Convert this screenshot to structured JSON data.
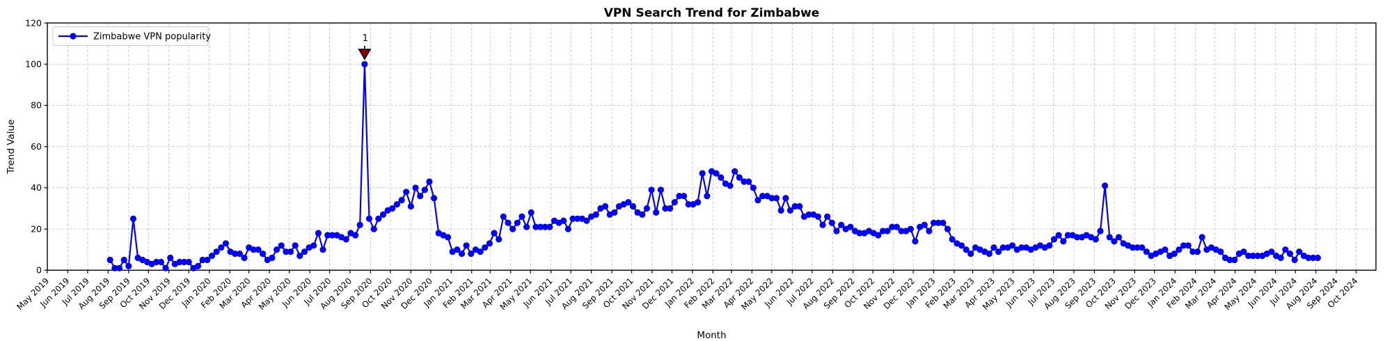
{
  "chart_data": {
    "type": "line",
    "title": "VPN Search Trend for Zimbabwe",
    "xlabel": "Month",
    "ylabel": "Trend Value",
    "ylim": [
      0,
      120
    ],
    "y_ticks": [
      0,
      20,
      40,
      60,
      80,
      100,
      120
    ],
    "grid": true,
    "legend_position": "upper-left",
    "axis_start": "2019-05-01",
    "axis_end": "2024-10-31",
    "x_tick_labels": [
      "May 2019",
      "Jun 2019",
      "Jul 2019",
      "Aug 2019",
      "Sep 2019",
      "Oct 2019",
      "Nov 2019",
      "Dec 2019",
      "Jan 2020",
      "Feb 2020",
      "Mar 2020",
      "Apr 2020",
      "May 2020",
      "Jun 2020",
      "Jul 2020",
      "Aug 2020",
      "Sep 2020",
      "Oct 2020",
      "Nov 2020",
      "Dec 2020",
      "Jan 2021",
      "Feb 2021",
      "Mar 2021",
      "Apr 2021",
      "May 2021",
      "Jun 2021",
      "Jul 2021",
      "Aug 2021",
      "Sep 2021",
      "Oct 2021",
      "Nov 2021",
      "Dec 2021",
      "Jan 2022",
      "Feb 2022",
      "Mar 2022",
      "Apr 2022",
      "May 2022",
      "Jun 2022",
      "Jul 2022",
      "Aug 2022",
      "Sep 2022",
      "Oct 2022",
      "Nov 2022",
      "Dec 2022",
      "Jan 2023",
      "Feb 2023",
      "Mar 2023",
      "Apr 2023",
      "May 2023",
      "Jun 2023",
      "Jul 2023",
      "Aug 2023",
      "Sep 2023",
      "Oct 2023",
      "Nov 2023",
      "Dec 2023",
      "Jan 2024",
      "Feb 2024",
      "Mar 2024",
      "Apr 2024",
      "May 2024",
      "Jun 2024",
      "Jul 2024",
      "Aug 2024",
      "Sep 2024",
      "Oct 2024"
    ],
    "series": [
      {
        "name": "Zimbabwe VPN popularity",
        "color": "#0000ff",
        "marker": "circle",
        "start_week": "2019-08-04",
        "frequency_days": 7,
        "values": [
          5,
          1,
          1,
          5,
          2,
          25,
          6,
          5,
          4,
          3,
          4,
          4,
          1,
          6,
          3,
          4,
          4,
          4,
          1,
          2,
          5,
          5,
          7,
          9,
          11,
          13,
          9,
          8,
          8,
          6,
          11,
          10,
          10,
          8,
          5,
          6,
          10,
          12,
          9,
          9,
          12,
          7,
          9,
          11,
          12,
          18,
          10,
          17,
          17,
          17,
          16,
          15,
          18,
          17,
          22,
          100,
          25,
          20,
          25,
          27,
          29,
          30,
          32,
          34,
          38,
          31,
          40,
          36,
          39,
          43,
          35,
          18,
          17,
          16,
          9,
          10,
          8,
          12,
          8,
          10,
          9,
          11,
          13,
          18,
          15,
          26,
          23,
          20,
          23,
          26,
          21,
          28,
          21,
          21,
          21,
          21,
          24,
          23,
          24,
          20,
          25,
          25,
          25,
          24,
          26,
          27,
          30,
          31,
          27,
          28,
          31,
          32,
          33,
          31,
          28,
          27,
          30,
          39,
          28,
          39,
          30,
          30,
          33,
          36,
          36,
          32,
          32,
          33,
          47,
          36,
          48,
          47,
          45,
          42,
          41,
          48,
          45,
          43,
          43,
          40,
          34,
          36,
          36,
          35,
          35,
          29,
          35,
          29,
          31,
          31,
          26,
          27,
          27,
          26,
          22,
          26,
          23,
          19,
          22,
          20,
          21,
          19,
          18,
          18,
          19,
          18,
          17,
          19,
          19,
          21,
          21,
          19,
          19,
          20,
          14,
          21,
          22,
          19,
          23,
          23,
          23,
          20,
          15,
          13,
          12,
          10,
          8,
          11,
          10,
          9,
          8,
          11,
          9,
          11,
          11,
          12,
          10,
          11,
          11,
          10,
          11,
          12,
          11,
          12,
          15,
          17,
          14,
          17,
          17,
          16,
          16,
          17,
          16,
          15,
          19,
          41,
          16,
          14,
          16,
          13,
          12,
          11,
          11,
          11,
          9,
          7,
          8,
          9,
          10,
          7,
          8,
          10,
          12,
          12,
          9,
          9,
          16,
          10,
          11,
          10,
          9,
          6,
          5,
          5,
          8,
          9,
          7,
          7,
          7,
          7,
          8,
          9,
          7,
          6,
          10,
          8,
          5,
          9,
          7,
          6,
          6,
          6
        ]
      }
    ],
    "annotation": {
      "label": "1",
      "week": "2020-08-23",
      "value": 100,
      "marker": "triangle-down",
      "marker_color": "#8b0000",
      "marker_edge_color": "#000000",
      "text_color": "#8b0000"
    },
    "legend": {
      "entries": [
        "Zimbabwe VPN popularity"
      ]
    },
    "colors": {
      "line": "#0000ff",
      "grid": "#c7c7c7",
      "spine": "#000000",
      "background": "#ffffff",
      "legend_edge": "#cccccc"
    }
  }
}
